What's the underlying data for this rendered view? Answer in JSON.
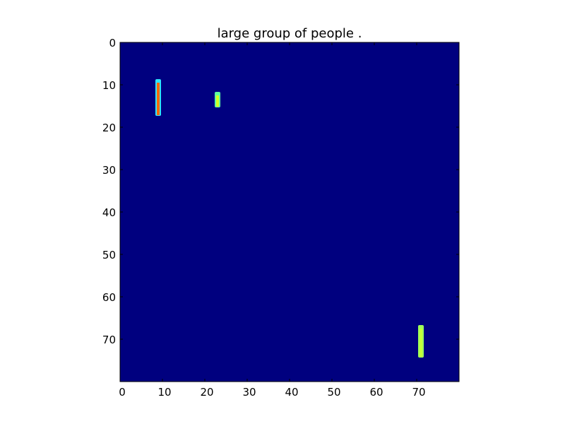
{
  "chart_data": {
    "type": "heatmap",
    "title": "large group of people .",
    "xlabel": "",
    "ylabel": "",
    "xlim": [
      0,
      80
    ],
    "ylim": [
      80,
      0
    ],
    "y_axis_inverted": true,
    "grid": false,
    "colormap": "jet",
    "background_value": 0.0,
    "background_color": "#00007f",
    "x_ticks": [
      0,
      10,
      20,
      30,
      40,
      50,
      60,
      70
    ],
    "y_ticks": [
      0,
      10,
      20,
      30,
      40,
      50,
      60,
      70
    ],
    "hotspots": [
      {
        "name": "hotspot-1",
        "x": 9,
        "y_start": 9,
        "y_end": 17,
        "value": 0.82,
        "color": "#ff6a00",
        "edge_color": "#2fe6ff"
      },
      {
        "name": "hotspot-2",
        "x": 23,
        "y_start": 12,
        "y_end": 15,
        "value": 0.55,
        "color": "#d4ff26",
        "edge_color": "#5fffa0"
      },
      {
        "name": "hotspot-3",
        "x": 71,
        "y_start": 67,
        "y_end": 74,
        "value": 0.62,
        "color": "#c2ff3a",
        "edge_color": "#9dff5a"
      }
    ]
  }
}
